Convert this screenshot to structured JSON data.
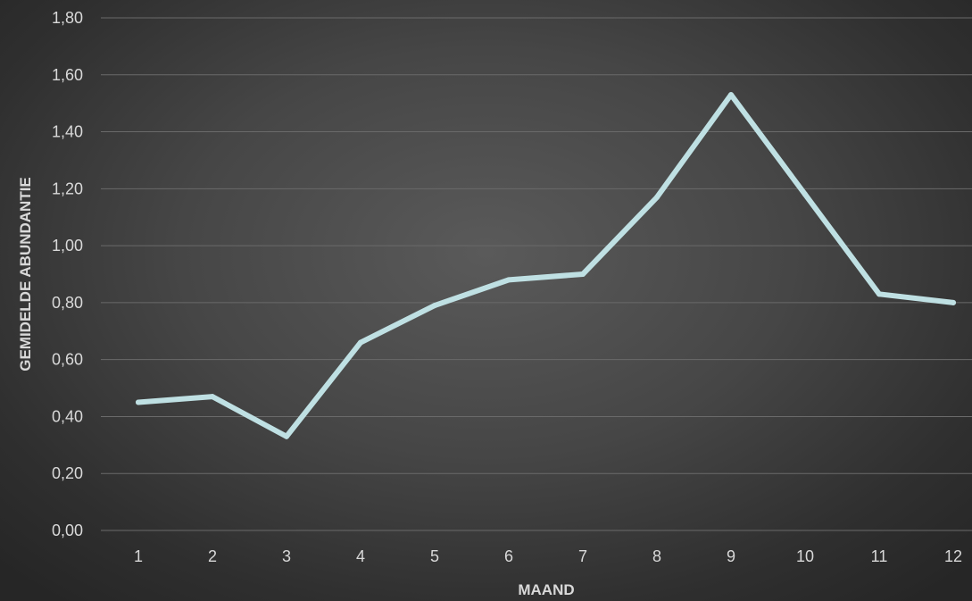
{
  "chart_data": {
    "type": "line",
    "title": "",
    "xlabel": "MAAND",
    "ylabel": "GEMIDELDE ABUNDANTIE",
    "categories": [
      "1",
      "2",
      "3",
      "4",
      "5",
      "6",
      "7",
      "8",
      "9",
      "10",
      "11",
      "12"
    ],
    "series": [
      {
        "values": [
          0.45,
          0.47,
          0.33,
          0.66,
          0.79,
          0.88,
          0.9,
          1.17,
          1.53,
          1.18,
          0.83,
          0.8
        ],
        "color": "#bfe0e3"
      }
    ],
    "yticks": [
      "0,00",
      "0,20",
      "0,40",
      "0,60",
      "0,80",
      "1,00",
      "1,20",
      "1,40",
      "1,60",
      "1,80"
    ],
    "ylim": [
      0,
      1.8
    ],
    "grid": "horizontal",
    "legend": "none",
    "colors": {
      "line": "#bfe0e3",
      "grid": "#6a6a6a",
      "text": "#d9d9d9"
    }
  }
}
